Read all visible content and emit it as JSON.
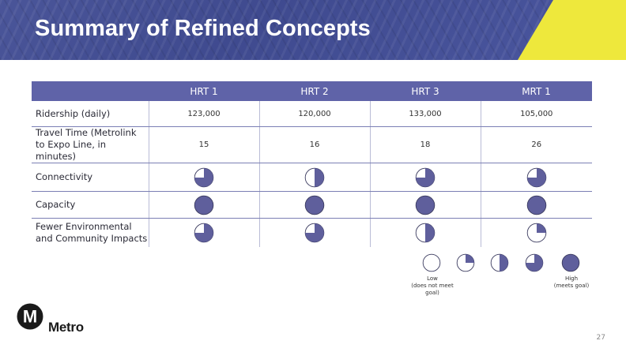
{
  "title": "Summary of Refined Concepts",
  "table": {
    "columns": [
      "HRT 1",
      "HRT 2",
      "HRT 3",
      "MRT 1"
    ],
    "rows": [
      {
        "label": "Ridership (daily)",
        "type": "text",
        "values": [
          "123,000",
          "120,000",
          "133,000",
          "105,000"
        ]
      },
      {
        "label": "Travel Time (Metrolink to Expo Line, in minutes)",
        "label_lines": [
          "Travel Time (Metrolink",
          "to Expo Line, in minutes)"
        ],
        "type": "text",
        "values": [
          "15",
          "16",
          "18",
          "26"
        ]
      },
      {
        "label": "Connectivity",
        "type": "rating",
        "ratings": [
          3,
          2,
          3,
          3
        ]
      },
      {
        "label": "Capacity",
        "type": "rating",
        "ratings": [
          4,
          4,
          4,
          4
        ]
      },
      {
        "label": "Fewer Environmental and Community Impacts",
        "label_lines": [
          "Fewer Environmental",
          "and Community Impacts"
        ],
        "type": "rating",
        "ratings": [
          3,
          3,
          2,
          1
        ]
      }
    ]
  },
  "rating_scale": {
    "min": 0,
    "max": 4,
    "unit": "quarters of circle filled"
  },
  "legend": {
    "levels": [
      0,
      1,
      2,
      3,
      4
    ],
    "low_label": [
      "Low",
      "(does not meet goal)"
    ],
    "high_label": [
      "High",
      "(meets goal)"
    ]
  },
  "logo": {
    "text": "Metro",
    "glyph": "M"
  },
  "page_number": "27",
  "colors": {
    "banner": "#4a5599",
    "accent_yellow": "#eee83c",
    "table_header": "#5f63a8",
    "ball_fill": "#5f5f9c",
    "ball_stroke": "#3a3a5e"
  },
  "icons": {
    "rating": "harvey-ball-icon",
    "logo": "metro-logo-icon"
  }
}
